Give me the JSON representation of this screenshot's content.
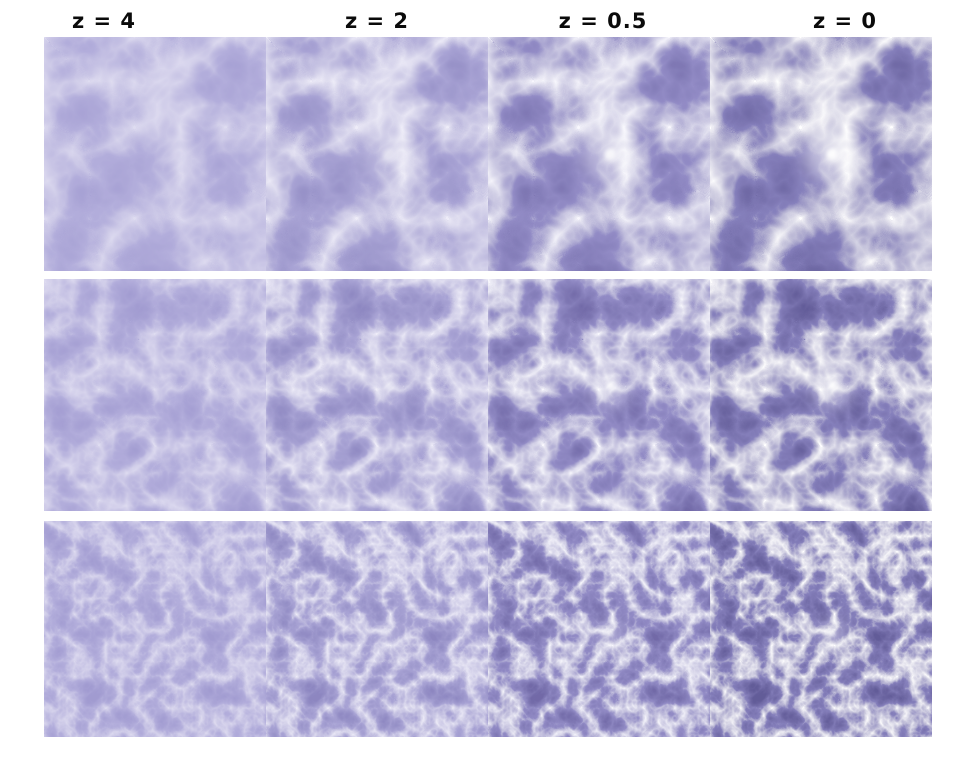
{
  "figure": {
    "description": "Cosmic web dark-matter simulation montage: three simulation rows, each shown at four redshift epochs",
    "background_color": "#ffffff",
    "label_text_color": "#0a0a0a",
    "column_labels": [
      {
        "label": "z = 4"
      },
      {
        "label": "z = 2"
      },
      {
        "label": "z = 0.5"
      },
      {
        "label": "z = 0"
      }
    ],
    "columns": [
      {
        "redshift": "z = 4",
        "filament_color": "#bcb7df",
        "mid_color": "#736cb6",
        "void_color": "#5b54a2",
        "cluster_glow": 0.0,
        "cluster_core": 0.0
      },
      {
        "redshift": "z = 2",
        "filament_color": "#dad7f0",
        "mid_color": "#655ea9",
        "void_color": "#443e88",
        "cluster_glow": 0.16,
        "cluster_core": 0.4
      },
      {
        "redshift": "z = 0.5",
        "filament_color": "#f0effb",
        "mid_color": "#4a4390",
        "void_color": "#2b2564",
        "cluster_glow": 0.38,
        "cluster_core": 0.8
      },
      {
        "redshift": "z = 0",
        "filament_color": "#ffffff",
        "mid_color": "#3d3780",
        "void_color": "#1f1b50",
        "cluster_glow": 0.5,
        "cluster_core": 0.92
      }
    ],
    "rows": [
      {
        "name": "row-1",
        "texture_scale": 0.011,
        "seed": 7,
        "cluster_x": 0.55,
        "cluster_y": 0.5,
        "cluster_r": 28
      },
      {
        "name": "row-2",
        "texture_scale": 0.018,
        "seed": 23,
        "cluster_x": 0.55,
        "cluster_y": 0.46,
        "cluster_r": 19
      },
      {
        "name": "row-3",
        "texture_scale": 0.032,
        "seed": 41,
        "cluster_x": 0.55,
        "cluster_y": 0.52,
        "cluster_r": 11
      }
    ]
  }
}
